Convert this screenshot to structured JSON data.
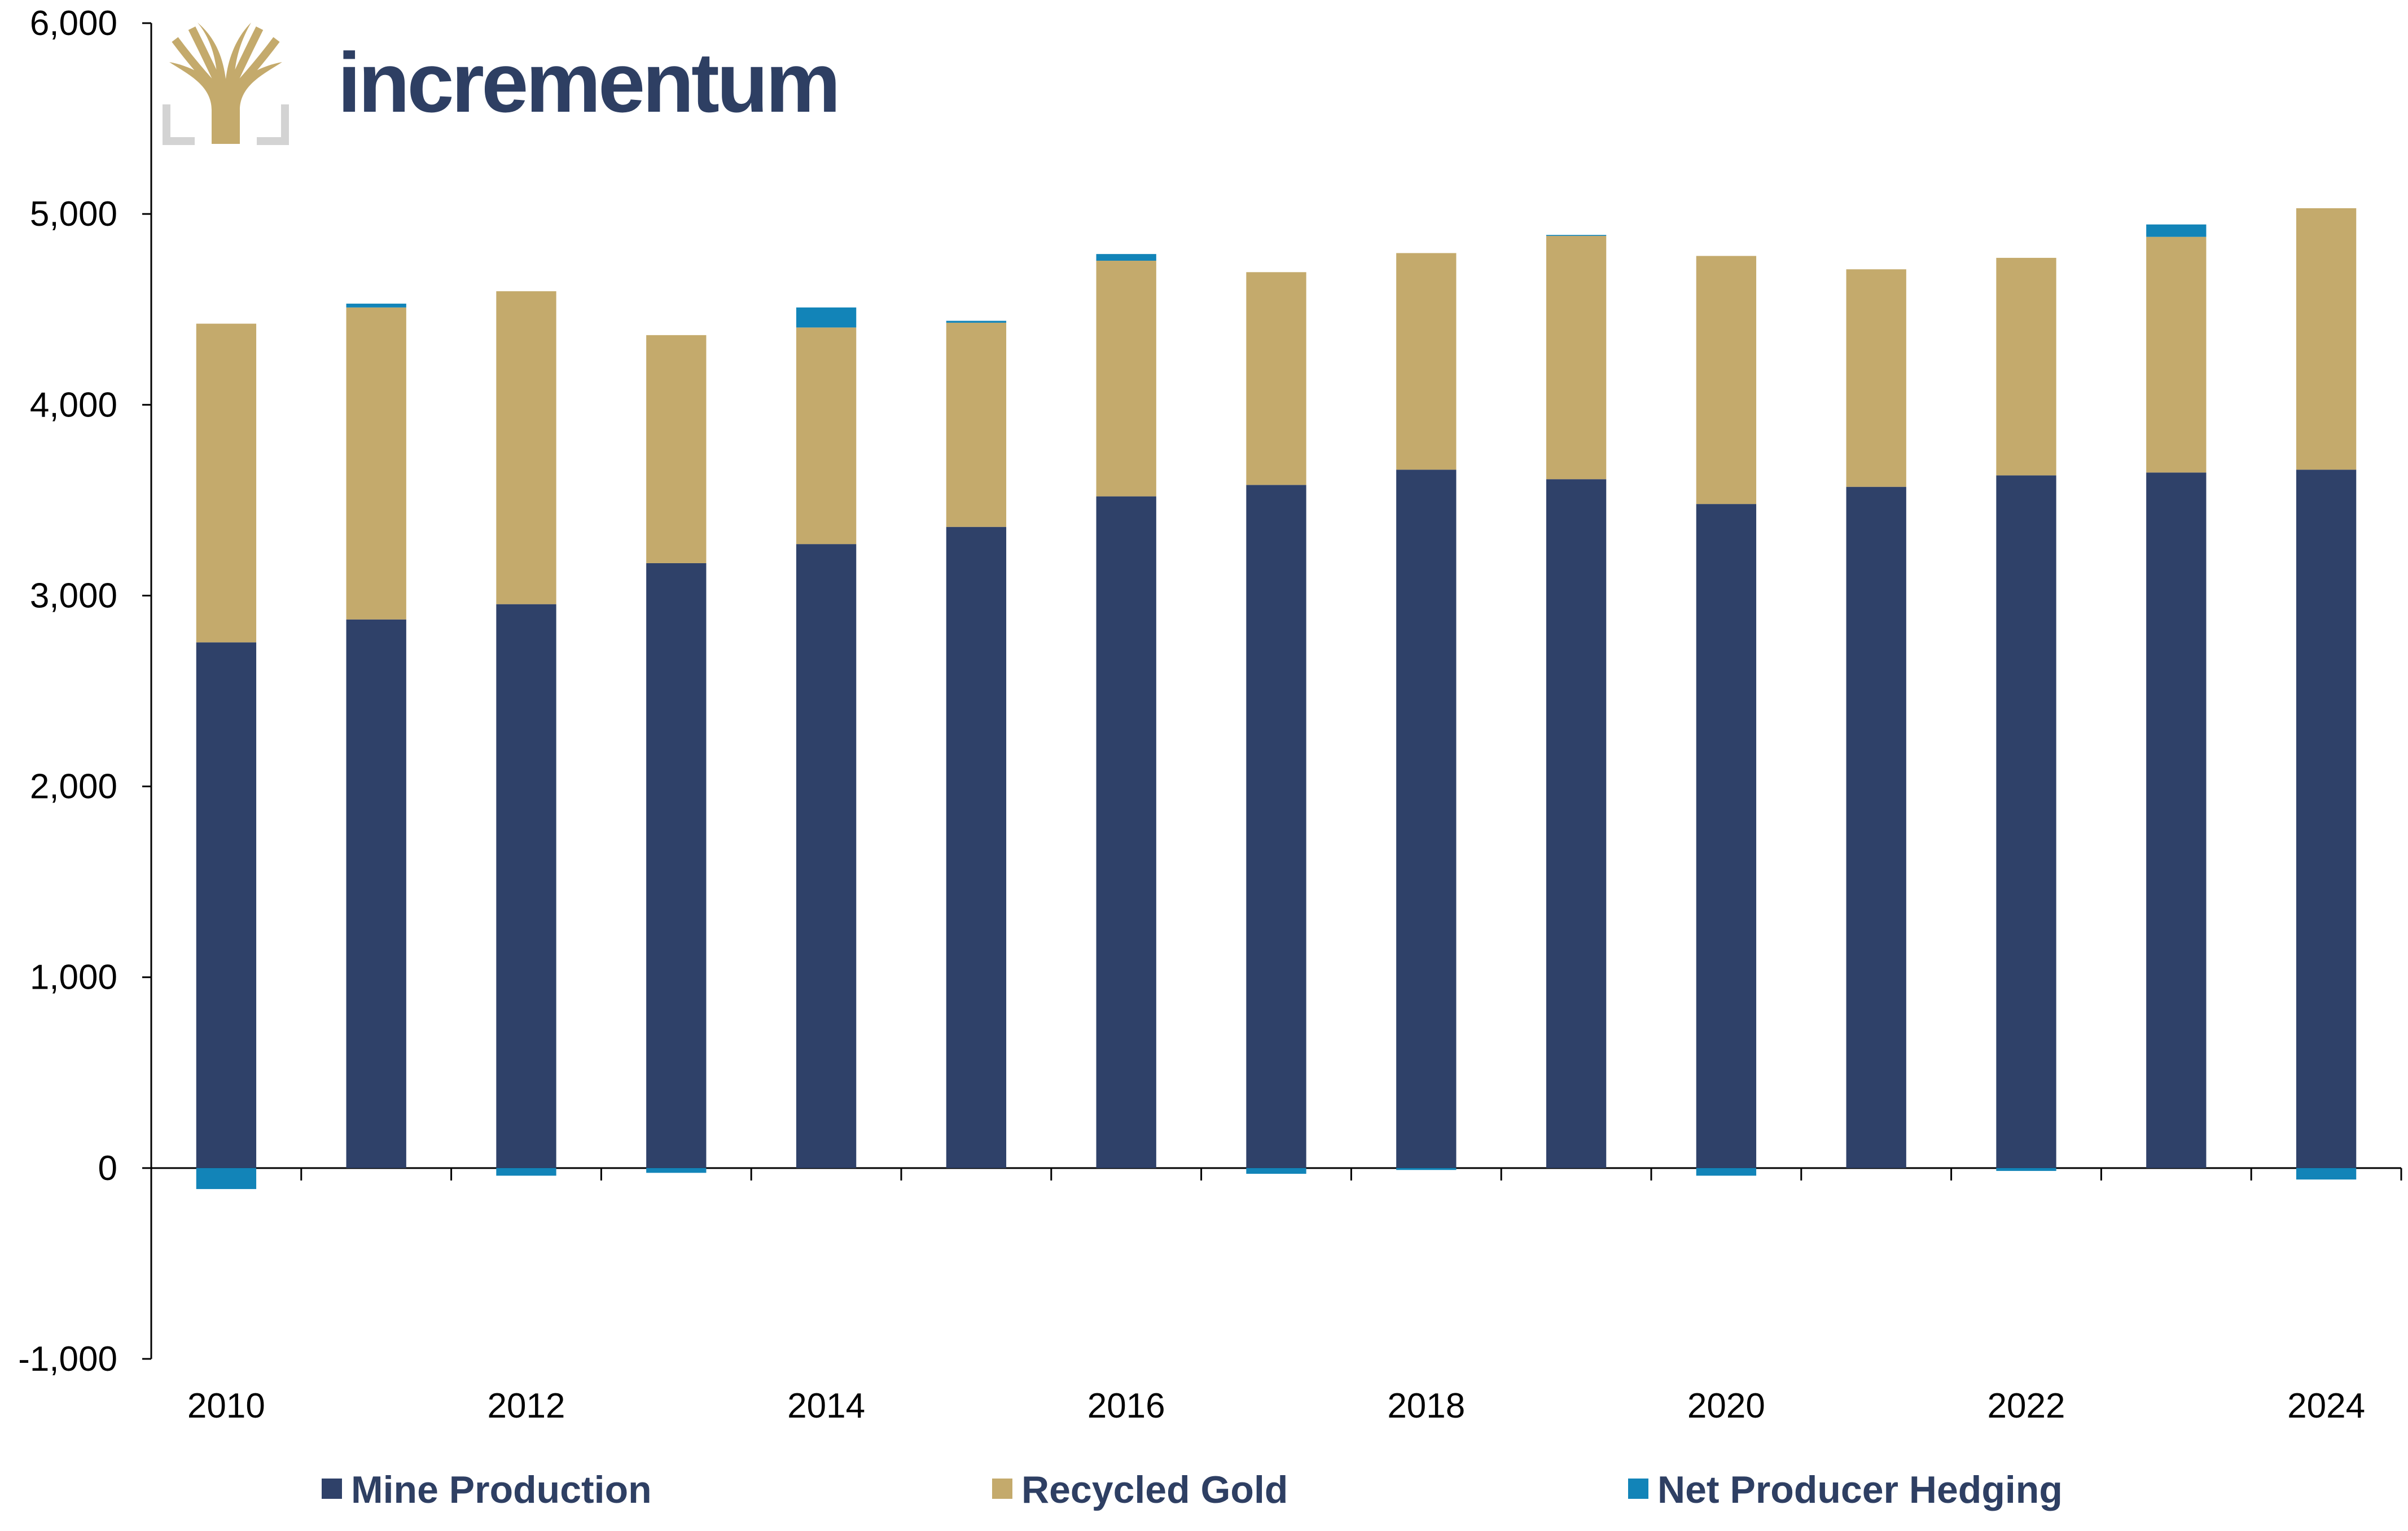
{
  "brand": {
    "name": "incrementum"
  },
  "colors": {
    "mine": "#2f4169",
    "recycled": "#c4aa6c",
    "hedging": "#1284b8",
    "axis": "#000000",
    "logo_gold": "#c4aa6c",
    "logo_gray": "#d3d3d3"
  },
  "chart_data": {
    "type": "bar",
    "stacked": true,
    "title": "",
    "xlabel": "",
    "ylabel": "",
    "ylim": [
      -1000,
      6000
    ],
    "yticks": [
      "6,000",
      "5,000",
      "4,000",
      "3,000",
      "2,000",
      "1,000",
      "0",
      "-1,000"
    ],
    "ytick_values": [
      6000,
      5000,
      4000,
      3000,
      2000,
      1000,
      0,
      -1000
    ],
    "categories": [
      "2010",
      "2011",
      "2012",
      "2013",
      "2014",
      "2015",
      "2016",
      "2017",
      "2018",
      "2019",
      "2020",
      "2021",
      "2022",
      "2023",
      "2024"
    ],
    "xtick_labels": [
      "2010",
      "",
      "2012",
      "",
      "2014",
      "",
      "2016",
      "",
      "2018",
      "",
      "2020",
      "",
      "2022",
      "",
      "2024"
    ],
    "grid": false,
    "legend_position": "bottom",
    "series": [
      {
        "name": "Mine Production",
        "color_key": "mine",
        "values": [
          2755,
          2875,
          2955,
          3170,
          3270,
          3360,
          3520,
          3580,
          3660,
          3610,
          3480,
          3570,
          3630,
          3645,
          3660
        ]
      },
      {
        "name": "Recycled Gold",
        "color_key": "recycled",
        "values": [
          1670,
          1635,
          1640,
          1195,
          1135,
          1070,
          1235,
          1115,
          1135,
          1275,
          1300,
          1140,
          1140,
          1235,
          1370
        ]
      },
      {
        "name": "Net Producer Hedging",
        "color_key": "hedging",
        "values": [
          -110,
          20,
          -40,
          -25,
          105,
          10,
          35,
          -30,
          -10,
          5,
          -40,
          0,
          -15,
          65,
          -60
        ]
      }
    ]
  }
}
